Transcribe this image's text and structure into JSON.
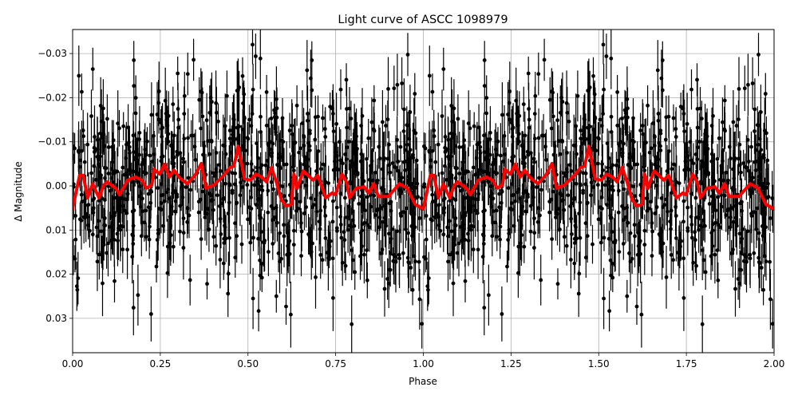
{
  "chart_data": {
    "type": "scatter",
    "title": "Light curve of ASCC 1098979",
    "xlabel": "Phase",
    "ylabel": "Δ Magnitude",
    "xlim": [
      0.0,
      2.0
    ],
    "ylim": [
      0.0375,
      -0.035
    ],
    "y_inverted": true,
    "grid": true,
    "legend": null,
    "x_ticks": [
      0.0,
      0.25,
      0.5,
      0.75,
      1.0,
      1.25,
      1.5,
      1.75,
      2.0
    ],
    "x_tick_labels": [
      "0.00",
      "0.25",
      "0.50",
      "0.75",
      "1.00",
      "1.25",
      "1.50",
      "1.75",
      "2.00"
    ],
    "y_ticks": [
      -0.03,
      -0.02,
      -0.01,
      0.0,
      0.01,
      0.02,
      0.03
    ],
    "y_tick_labels": [
      "−0.03",
      "−0.02",
      "−0.01",
      "0.00",
      "0.01",
      "0.02",
      "0.03"
    ],
    "series": [
      {
        "name": "observations",
        "kind": "errorbar-scatter",
        "color": "#000000",
        "description": "Dense phase-folded photometry (~2 cycles repeated), points scattered roughly between -0.035 and +0.037 mag with typical error bars of ~0.005 mag",
        "n_points_per_cycle": 900,
        "scatter_sigma": 0.011,
        "error_bar_typical": 0.005
      },
      {
        "name": "binned model",
        "kind": "line",
        "color": "#ff0000",
        "linewidth": 4,
        "period_repeat": 1.0,
        "x": [
          0.0,
          0.02,
          0.03,
          0.043,
          0.057,
          0.075,
          0.089,
          0.098,
          0.123,
          0.134,
          0.157,
          0.18,
          0.198,
          0.21,
          0.226,
          0.232,
          0.248,
          0.262,
          0.276,
          0.289,
          0.303,
          0.326,
          0.349,
          0.367,
          0.38,
          0.403,
          0.431,
          0.449,
          0.46,
          0.472,
          0.49,
          0.508,
          0.522,
          0.54,
          0.553,
          0.567,
          0.581,
          0.595,
          0.608,
          0.624,
          0.631,
          0.64,
          0.658,
          0.686,
          0.699,
          0.722,
          0.74,
          0.749,
          0.768,
          0.781,
          0.79,
          0.809,
          0.831,
          0.845,
          0.859,
          0.872,
          0.9,
          0.932,
          0.954,
          0.977,
          1.0
        ],
        "y": [
          0.0052,
          -0.0024,
          -0.0024,
          0.0027,
          -0.0005,
          0.0027,
          -0.0002,
          -0.0009,
          0.0005,
          0.002,
          -0.0013,
          -0.002,
          -0.0013,
          0.0005,
          -0.0002,
          -0.0038,
          -0.0027,
          -0.0049,
          -0.002,
          -0.0036,
          -0.002,
          -0.0005,
          -0.0024,
          -0.0051,
          0.0005,
          -0.0002,
          -0.0024,
          -0.0042,
          -0.0045,
          -0.009,
          -0.0016,
          -0.0013,
          -0.0027,
          -0.002,
          -0.0009,
          -0.0042,
          -0.0009,
          0.0031,
          0.0045,
          0.0042,
          -0.0027,
          0.0005,
          -0.0034,
          -0.0013,
          -0.0024,
          0.0027,
          0.0016,
          0.002,
          -0.0027,
          -0.0009,
          0.0027,
          0.0005,
          0.0002,
          0.0016,
          -0.0005,
          0.0024,
          0.0024,
          -0.0005,
          0.0005,
          0.0042,
          0.0052
        ]
      }
    ]
  },
  "colors": {
    "background": "#ffffff",
    "grid": "#b0b0b0",
    "points": "#000000",
    "model": "#ff0000"
  }
}
